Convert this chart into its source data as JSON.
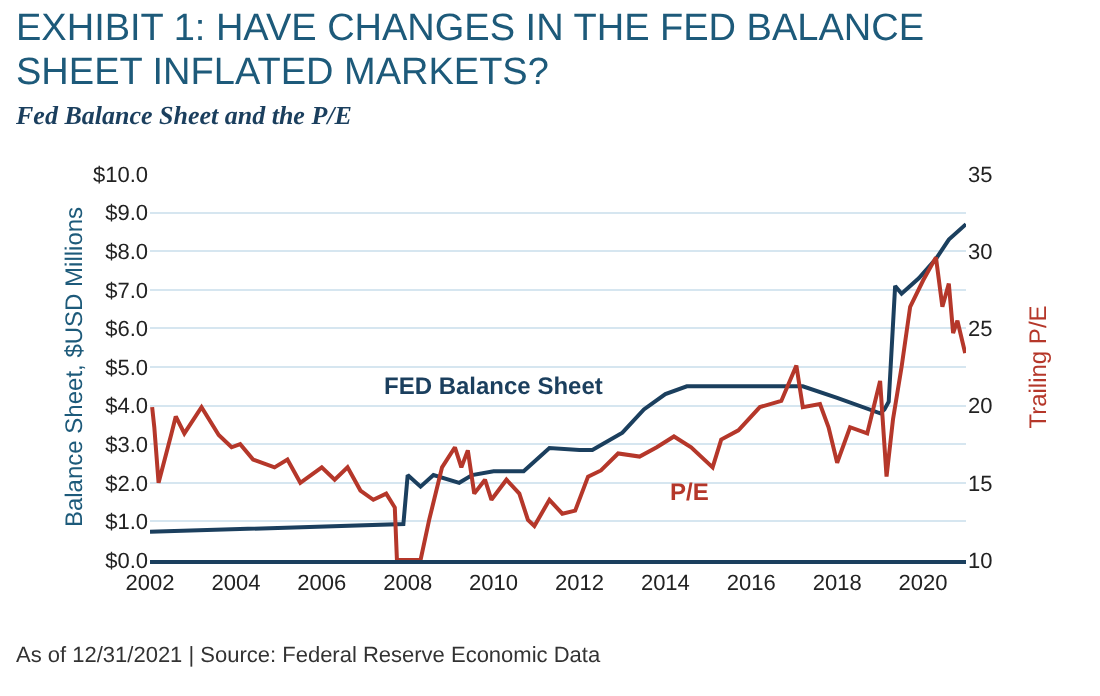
{
  "chart_data": {
    "type": "line",
    "title": "EXHIBIT 1: HAVE CHANGES IN THE FED BALANCE SHEET INFLATED MARKETS?",
    "subtitle": "Fed Balance Sheet and the P/E",
    "ylabel": "Balance Sheet, $USD Millions",
    "y2label": "Trailing P/E",
    "annotations": [
      "As of 12/31/2021 | Source: Federal Reserve Economic Data"
    ],
    "xlim": [
      2002,
      2021
    ],
    "xticks": [
      2002,
      2004,
      2006,
      2008,
      2010,
      2012,
      2014,
      2016,
      2018,
      2020
    ],
    "ylim": [
      0,
      10
    ],
    "yticks": [
      {
        "value": 0,
        "label": "$0.0"
      },
      {
        "value": 1,
        "label": "$1.0"
      },
      {
        "value": 2,
        "label": "$2.0"
      },
      {
        "value": 3,
        "label": "$3.0"
      },
      {
        "value": 4,
        "label": "$4.0"
      },
      {
        "value": 5,
        "label": "$5.0"
      },
      {
        "value": 6,
        "label": "$6.0"
      },
      {
        "value": 7,
        "label": "$7.0"
      },
      {
        "value": 8,
        "label": "$8.0"
      },
      {
        "value": 9,
        "label": "$9.0"
      },
      {
        "value": 10,
        "label": "$10.0"
      }
    ],
    "y2lim": [
      10,
      35
    ],
    "y2ticks": [
      10,
      15,
      20,
      25,
      30,
      35
    ],
    "grid": "y",
    "legend": false,
    "line_style": "solid",
    "marker": "none",
    "series": [
      {
        "name": "FED Balance Sheet",
        "color": "#1b3f5e",
        "x": [
          2002,
          2007.9,
          2008.0,
          2008.3,
          2008.6,
          2009.2,
          2009.5,
          2010,
          2010.7,
          2011.3,
          2012,
          2012.3,
          2013,
          2013.5,
          2014,
          2014.5,
          2017.2,
          2018,
          2019,
          2019.1,
          2019.2,
          2019.35,
          2019.5,
          2019.9,
          2020.3,
          2020.6,
          2021
        ],
        "values": [
          0.73,
          0.93,
          2.2,
          1.9,
          2.2,
          2.0,
          2.2,
          2.3,
          2.3,
          2.9,
          2.85,
          2.85,
          3.3,
          3.9,
          4.3,
          4.5,
          4.5,
          4.2,
          3.8,
          3.9,
          4.1,
          7.1,
          6.9,
          7.3,
          7.8,
          8.3,
          8.7
        ]
      },
      {
        "name": "P/E",
        "color": "#b5372a",
        "axis": "y2",
        "x": [
          2002.05,
          2002.1,
          2002.2,
          2002.5,
          2002.6,
          2002.8,
          2003.2,
          2003.6,
          2003.9,
          2004.1,
          2004.4,
          2004.9,
          2005.2,
          2005.5,
          2006.0,
          2006.3,
          2006.6,
          2006.9,
          2007.2,
          2007.5,
          2007.7,
          2007.75,
          2007.9,
          2008.3,
          2008.5,
          2008.8,
          2009.1,
          2009.25,
          2009.4,
          2009.55,
          2009.8,
          2009.95,
          2010.3,
          2010.6,
          2010.8,
          2010.95,
          2011.3,
          2011.6,
          2011.9,
          2012.2,
          2012.5,
          2012.9,
          2013.4,
          2013.8,
          2014.2,
          2014.6,
          2015.1,
          2015.3,
          2015.7,
          2016.2,
          2016.7,
          2017.05,
          2017.2,
          2017.6,
          2017.8,
          2018.0,
          2018.3,
          2018.7,
          2019.0,
          2019.15,
          2019.3,
          2019.5,
          2019.7,
          2020.0,
          2020.3,
          2020.45,
          2020.6,
          2020.7,
          2020.8,
          2020.98
        ],
        "values": [
          19.9,
          18.6,
          15.0,
          18.2,
          19.3,
          18.2,
          19.9,
          18.1,
          17.3,
          17.5,
          16.5,
          16.0,
          16.5,
          15.0,
          16.0,
          15.2,
          16.0,
          14.5,
          13.9,
          14.3,
          13.4,
          10.0,
          10.0,
          10.0,
          12.6,
          16.0,
          17.3,
          16.0,
          17.1,
          14.3,
          15.2,
          13.9,
          15.2,
          14.3,
          12.6,
          12.2,
          13.9,
          13.0,
          13.2,
          15.4,
          15.8,
          16.9,
          16.7,
          17.3,
          18.0,
          17.3,
          16.0,
          17.8,
          18.4,
          19.9,
          20.3,
          22.6,
          19.9,
          20.1,
          18.6,
          16.3,
          18.6,
          18.2,
          21.6,
          15.4,
          19.1,
          22.5,
          26.4,
          28.1,
          29.6,
          26.4,
          27.9,
          24.7,
          25.5,
          23.4
        ]
      }
    ]
  }
}
